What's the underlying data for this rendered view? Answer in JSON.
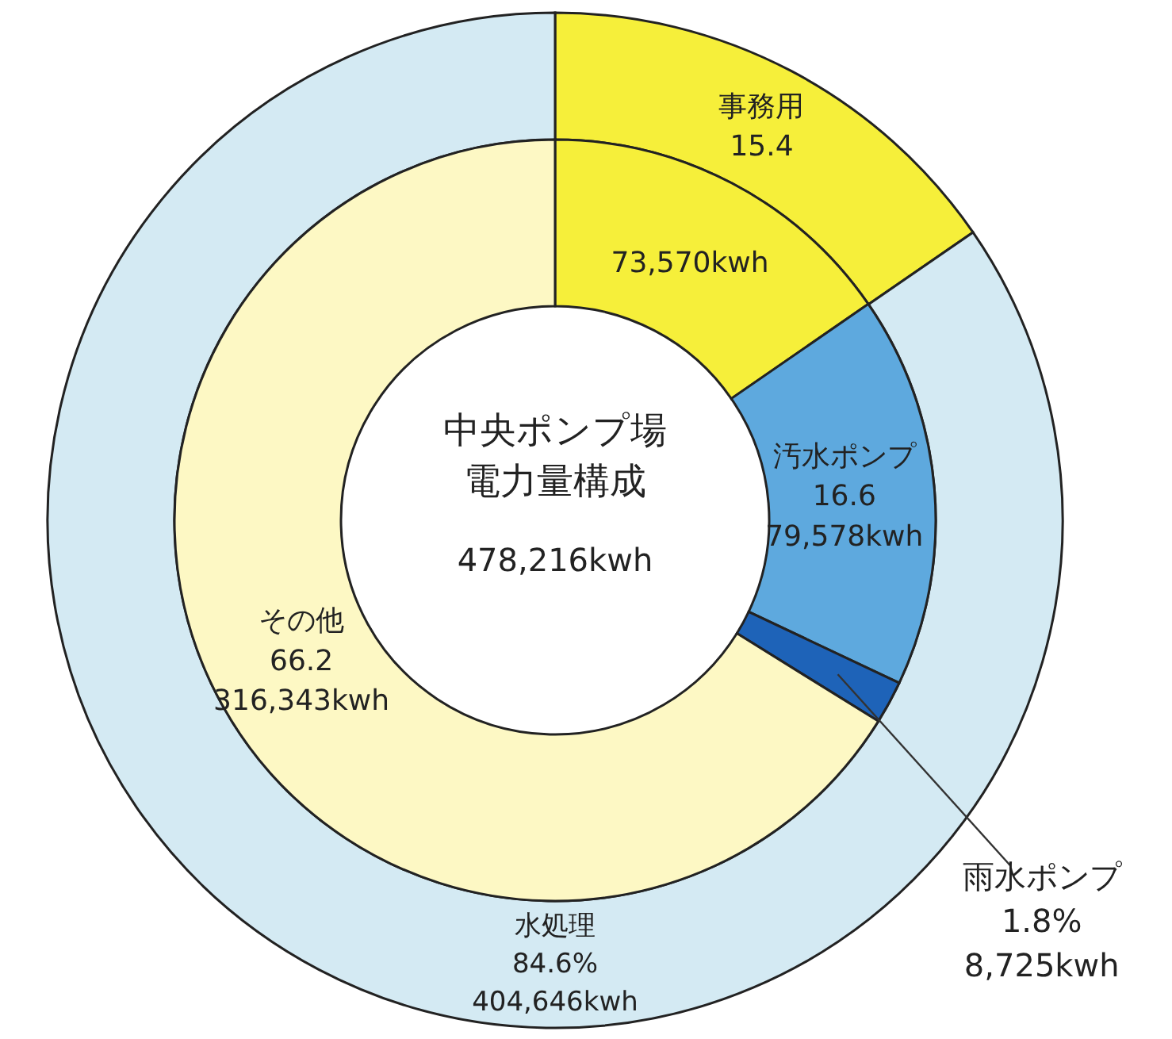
{
  "chart_data": [
    {
      "type": "donut",
      "categories": [
        "事務用",
        "水処理"
      ],
      "values": [
        15.4,
        84.6
      ],
      "colors": [
        "#f6ef3a",
        "#d4eaf3"
      ],
      "value_labels": [
        "15.4",
        "84.6%\n404,646kwh"
      ]
    },
    {
      "type": "donut",
      "title": "中央ポンプ場",
      "subtitle": "電力量構成",
      "annotations": [
        "478,216kwh"
      ],
      "categories": [
        null,
        "汚水ポンプ",
        "雨水ポンプ",
        "その他"
      ],
      "values": [
        73570,
        79578,
        8725,
        316343
      ],
      "colors": [
        "#f6ef3a",
        "#5ea9de",
        "#1e63b8",
        "#fdf8c4"
      ],
      "value_labels": [
        "73,570kwh",
        "16.6\n79,578kwh",
        "1.8%\n8,725kwh",
        "66.2\n316,343kwh"
      ]
    }
  ]
}
